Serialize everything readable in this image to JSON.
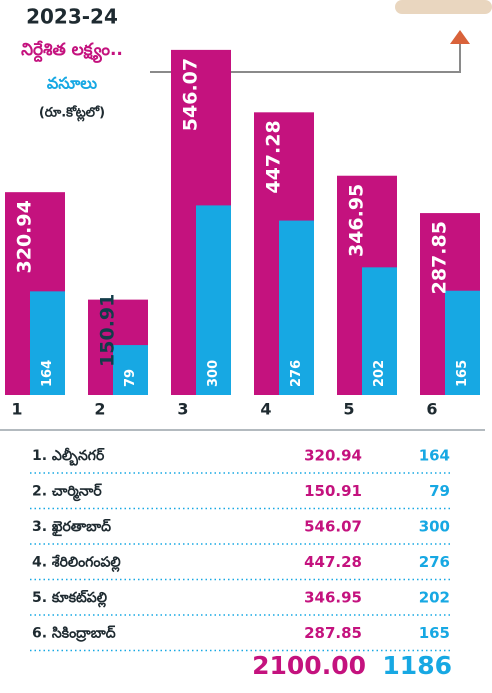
{
  "chart_data": {
    "type": "bar",
    "title": "2023-24",
    "subtitle": "(రూ.కోట్లలో)",
    "categories": [
      "1",
      "2",
      "3",
      "4",
      "5",
      "6"
    ],
    "series": [
      {
        "name": "నిర్దేశిత లక్ష్యం..",
        "color": "#c4127e",
        "values": [
          320.94,
          150.91,
          546.07,
          447.28,
          346.95,
          287.85
        ]
      },
      {
        "name": "వసూలు",
        "color": "#17a8e3",
        "values": [
          164,
          79,
          300,
          276,
          202,
          165
        ]
      }
    ]
  },
  "table": {
    "rows": [
      [
        "1. ఎల్బీనగర్",
        "320.94",
        "164"
      ],
      [
        "2. చార్మినార్",
        "150.91",
        "79"
      ],
      [
        "3. ఖైరతాబాద్",
        "546.07",
        "300"
      ],
      [
        "4. శేరిలింగంపల్లి",
        "447.28",
        "276"
      ],
      [
        "5. కూకట్‌పల్లి",
        "346.95",
        "202"
      ],
      [
        "6. సికింద్రాబాద్",
        "287.85",
        "165"
      ]
    ],
    "total": [
      "2100.00",
      "1186"
    ]
  }
}
